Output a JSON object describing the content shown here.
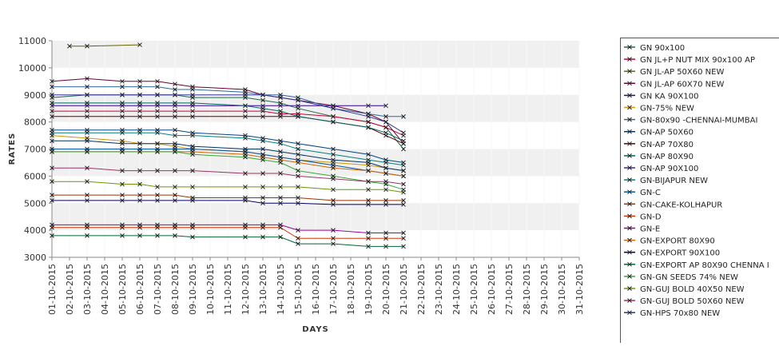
{
  "chart_data": {
    "type": "line",
    "title": "",
    "xlabel": "DAYS",
    "ylabel": "RATES",
    "ylim": [
      3000,
      11000
    ],
    "y_ticks": [
      3000,
      4000,
      5000,
      6000,
      7000,
      8000,
      9000,
      10000,
      11000
    ],
    "grid": "horizontal bands",
    "legend_position": "right",
    "x_categories": [
      "01-10-2015",
      "02-10-2015",
      "03-10-2015",
      "04-10-2015",
      "05-10-2015",
      "06-10-2015",
      "07-10-2015",
      "08-10-2015",
      "09-10-2015",
      "10-10-2015",
      "11-10-2015",
      "12-10-2015",
      "13-10-2015",
      "14-10-2015",
      "15-10-2015",
      "16-10-2015",
      "17-10-2015",
      "18-10-2015",
      "19-10-2015",
      "20-10-2015",
      "21-10-2015",
      "22-10-2015",
      "23-10-2015",
      "24-10-2015",
      "25-10-2015",
      "26-10-2015",
      "27-10-2015",
      "28-10-2015",
      "29-10-2015",
      "30-10-2015",
      "31-10-2015"
    ],
    "series": [
      {
        "name": "GN 90x100",
        "color": "#1f6b4a",
        "values": [
          8900,
          null,
          9000,
          null,
          9000,
          9000,
          9000,
          9000,
          8900,
          null,
          null,
          8900,
          8800,
          8700,
          8500,
          null,
          8200,
          null,
          8000,
          7800,
          7000
        ]
      },
      {
        "name": "GN JL+P NUT MIX 90x100 AP",
        "color": "#cc0033",
        "values": [
          8400,
          null,
          8400,
          null,
          8400,
          8400,
          8400,
          8400,
          8400,
          null,
          null,
          8400,
          8400,
          8300,
          8300,
          null,
          8200,
          null,
          8000,
          7800,
          7500
        ]
      },
      {
        "name": "GN JL-AP 50X60 NEW",
        "color": "#666600",
        "values": [
          null,
          10800,
          10800,
          null,
          null,
          10850,
          null,
          null,
          null,
          null,
          null,
          null,
          null,
          null,
          null,
          null,
          null,
          null,
          null,
          null,
          null
        ]
      },
      {
        "name": "GN JL-AP 60X70 NEW",
        "color": "#660033",
        "values": [
          9500,
          null,
          9600,
          null,
          9500,
          9500,
          9500,
          9400,
          9300,
          null,
          null,
          9200,
          9000,
          8900,
          8800,
          null,
          8600,
          null,
          8300,
          8000,
          7200
        ]
      },
      {
        "name": "GN KA 90X100",
        "color": "#330099",
        "values": [
          8600,
          null,
          8600,
          null,
          8600,
          8600,
          8600,
          8600,
          8600,
          null,
          null,
          8600,
          8600,
          8600,
          8600,
          null,
          8600,
          null,
          8600,
          8600,
          null
        ]
      },
      {
        "name": "GN-75% NEW",
        "color": "#cc9900",
        "values": [
          7500,
          null,
          7400,
          null,
          7300,
          7200,
          7200,
          7100,
          7000,
          null,
          null,
          6900,
          6800,
          6700,
          6600,
          null,
          6500,
          null,
          6400,
          6300,
          6200
        ]
      },
      {
        "name": "GN-80x90 -CHENNAI-MUMBAI",
        "color": "#336699",
        "values": [
          9300,
          null,
          9300,
          null,
          9300,
          9300,
          9300,
          9200,
          9200,
          null,
          null,
          9100,
          9000,
          9000,
          8900,
          null,
          8500,
          null,
          8300,
          8200,
          8200
        ]
      },
      {
        "name": "GN-AP 50X60",
        "color": "#003366",
        "values": [
          7300,
          null,
          7300,
          null,
          7200,
          7200,
          7200,
          7200,
          7100,
          null,
          null,
          7000,
          7000,
          6900,
          6800,
          null,
          6600,
          null,
          6500,
          6300,
          6200
        ]
      },
      {
        "name": "GN-AP 70X80",
        "color": "#660000",
        "values": [
          8200,
          null,
          8200,
          null,
          8200,
          8200,
          8200,
          8200,
          8200,
          null,
          null,
          8200,
          8200,
          8200,
          8200,
          null,
          8000,
          null,
          7800,
          7500,
          7200
        ]
      },
      {
        "name": "GN-AP 80X90",
        "color": "#006666",
        "values": [
          8700,
          null,
          8700,
          null,
          8700,
          8700,
          8700,
          8700,
          8700,
          null,
          null,
          8600,
          8500,
          8400,
          8200,
          null,
          8000,
          null,
          7800,
          7600,
          7300
        ]
      },
      {
        "name": "GN-AP 90X100",
        "color": "#333399",
        "values": [
          9000,
          null,
          9000,
          null,
          9000,
          9000,
          9000,
          9000,
          9000,
          null,
          null,
          9000,
          9000,
          8900,
          8800,
          null,
          8500,
          null,
          8200,
          8000,
          7600
        ]
      },
      {
        "name": "GN-BIJAPUR NEW",
        "color": "#008080",
        "values": [
          7600,
          null,
          7600,
          null,
          7600,
          7600,
          7600,
          7500,
          7500,
          null,
          null,
          7400,
          7300,
          7200,
          7000,
          null,
          6800,
          null,
          6600,
          6500,
          6400
        ]
      },
      {
        "name": "GN-C",
        "color": "#0055aa",
        "values": [
          7000,
          null,
          7000,
          null,
          7000,
          7000,
          7000,
          7000,
          7000,
          null,
          null,
          6900,
          6800,
          6700,
          6600,
          null,
          6400,
          null,
          6200,
          6100,
          6000
        ]
      },
      {
        "name": "GN-CAKE-KOLHAPUR",
        "color": "#993300",
        "values": [
          5300,
          null,
          5300,
          null,
          5300,
          5300,
          5300,
          5300,
          5200,
          null,
          null,
          5200,
          5200,
          5200,
          5200,
          null,
          5100,
          null,
          5100,
          5100,
          5100
        ]
      },
      {
        "name": "GN-D",
        "color": "#cc3300",
        "values": [
          4100,
          null,
          4100,
          null,
          4100,
          4100,
          4100,
          4100,
          4100,
          null,
          null,
          4100,
          4100,
          4100,
          3700,
          null,
          3700,
          null,
          3700,
          3700,
          3700
        ]
      },
      {
        "name": "GN-E",
        "color": "#990099",
        "values": [
          4200,
          null,
          4200,
          null,
          4200,
          4200,
          4200,
          4200,
          4200,
          null,
          null,
          4200,
          4200,
          4200,
          4000,
          null,
          4000,
          null,
          3900,
          3900,
          3900
        ]
      },
      {
        "name": "GN-EXPORT 80X90",
        "color": "#cc6600",
        "values": [
          6900,
          null,
          6900,
          null,
          6900,
          6900,
          6900,
          6900,
          6900,
          null,
          null,
          6800,
          6700,
          6600,
          6500,
          null,
          6300,
          null,
          6200,
          6100,
          6000
        ]
      },
      {
        "name": "GN-EXPORT 90X100",
        "color": "#000066",
        "values": [
          5100,
          null,
          5100,
          null,
          5100,
          5100,
          5100,
          5100,
          5100,
          null,
          null,
          5100,
          5000,
          5000,
          5000,
          null,
          4950,
          null,
          4950,
          4950,
          4950
        ]
      },
      {
        "name": "GN-EXPORT AP 80X90 CHENNA I",
        "color": "#006633",
        "values": [
          3800,
          null,
          3800,
          null,
          3800,
          3800,
          3800,
          3800,
          3750,
          null,
          null,
          3750,
          3750,
          3750,
          3500,
          null,
          3500,
          null,
          3400,
          3400,
          3400
        ]
      },
      {
        "name": "GN-GN SEEDS 74% NEW",
        "color": "#33aa33",
        "values": [
          6900,
          null,
          6900,
          null,
          6900,
          6900,
          6900,
          6900,
          6800,
          null,
          null,
          6700,
          6600,
          6500,
          6200,
          null,
          6000,
          null,
          5800,
          5700,
          5500
        ]
      },
      {
        "name": "GN-GUJ BOLD 40X50 NEW",
        "color": "#669900",
        "values": [
          5800,
          null,
          5800,
          null,
          5700,
          5700,
          5600,
          5600,
          5600,
          null,
          null,
          5600,
          5600,
          5600,
          5600,
          null,
          5500,
          null,
          5500,
          5500,
          5400
        ]
      },
      {
        "name": "GN-GUJ BOLD 50X60 NEW",
        "color": "#993366",
        "values": [
          6300,
          null,
          6300,
          null,
          6200,
          6200,
          6200,
          6200,
          6200,
          null,
          null,
          6100,
          6100,
          6100,
          6000,
          null,
          5900,
          null,
          5800,
          5800,
          5700
        ]
      },
      {
        "name": "GN-HPS 70x80 NEW",
        "color": "#004488",
        "values": [
          7700,
          null,
          7700,
          null,
          7700,
          7700,
          7700,
          7700,
          7600,
          null,
          null,
          7500,
          7400,
          7300,
          7200,
          null,
          7000,
          null,
          6800,
          6600,
          6500
        ]
      }
    ]
  }
}
